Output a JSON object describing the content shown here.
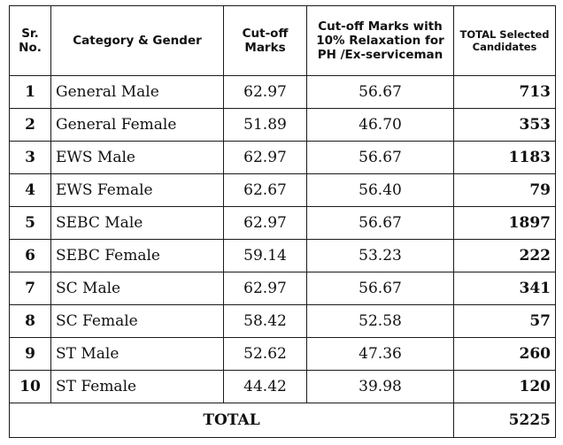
{
  "table": {
    "headers": {
      "sr": "Sr. No.",
      "category": "Category & Gender",
      "cutoff": "Cut-off Marks",
      "relaxation": "Cut-off Marks with 10% Relaxation for PH /Ex-serviceman",
      "total_selected": "TOTAL Selected Candidates"
    },
    "rows": [
      {
        "sr": "1",
        "category": "General Male",
        "cutoff": "62.97",
        "relaxation": "56.67",
        "selected": "713"
      },
      {
        "sr": "2",
        "category": "General Female",
        "cutoff": "51.89",
        "relaxation": "46.70",
        "selected": "353"
      },
      {
        "sr": "3",
        "category": "EWS Male",
        "cutoff": "62.97",
        "relaxation": "56.67",
        "selected": "1183"
      },
      {
        "sr": "4",
        "category": "EWS Female",
        "cutoff": "62.67",
        "relaxation": "56.40",
        "selected": "79"
      },
      {
        "sr": "5",
        "category": "SEBC Male",
        "cutoff": "62.97",
        "relaxation": "56.67",
        "selected": "1897"
      },
      {
        "sr": "6",
        "category": "SEBC Female",
        "cutoff": "59.14",
        "relaxation": "53.23",
        "selected": "222"
      },
      {
        "sr": "7",
        "category": "SC Male",
        "cutoff": "62.97",
        "relaxation": "56.67",
        "selected": "341"
      },
      {
        "sr": "8",
        "category": "SC Female",
        "cutoff": "58.42",
        "relaxation": "52.58",
        "selected": "57"
      },
      {
        "sr": "9",
        "category": "ST Male",
        "cutoff": "52.62",
        "relaxation": "47.36",
        "selected": "260"
      },
      {
        "sr": "10",
        "category": "ST Female",
        "cutoff": "44.42",
        "relaxation": "39.98",
        "selected": "120"
      }
    ],
    "total": {
      "label": "TOTAL",
      "value": "5225"
    }
  }
}
